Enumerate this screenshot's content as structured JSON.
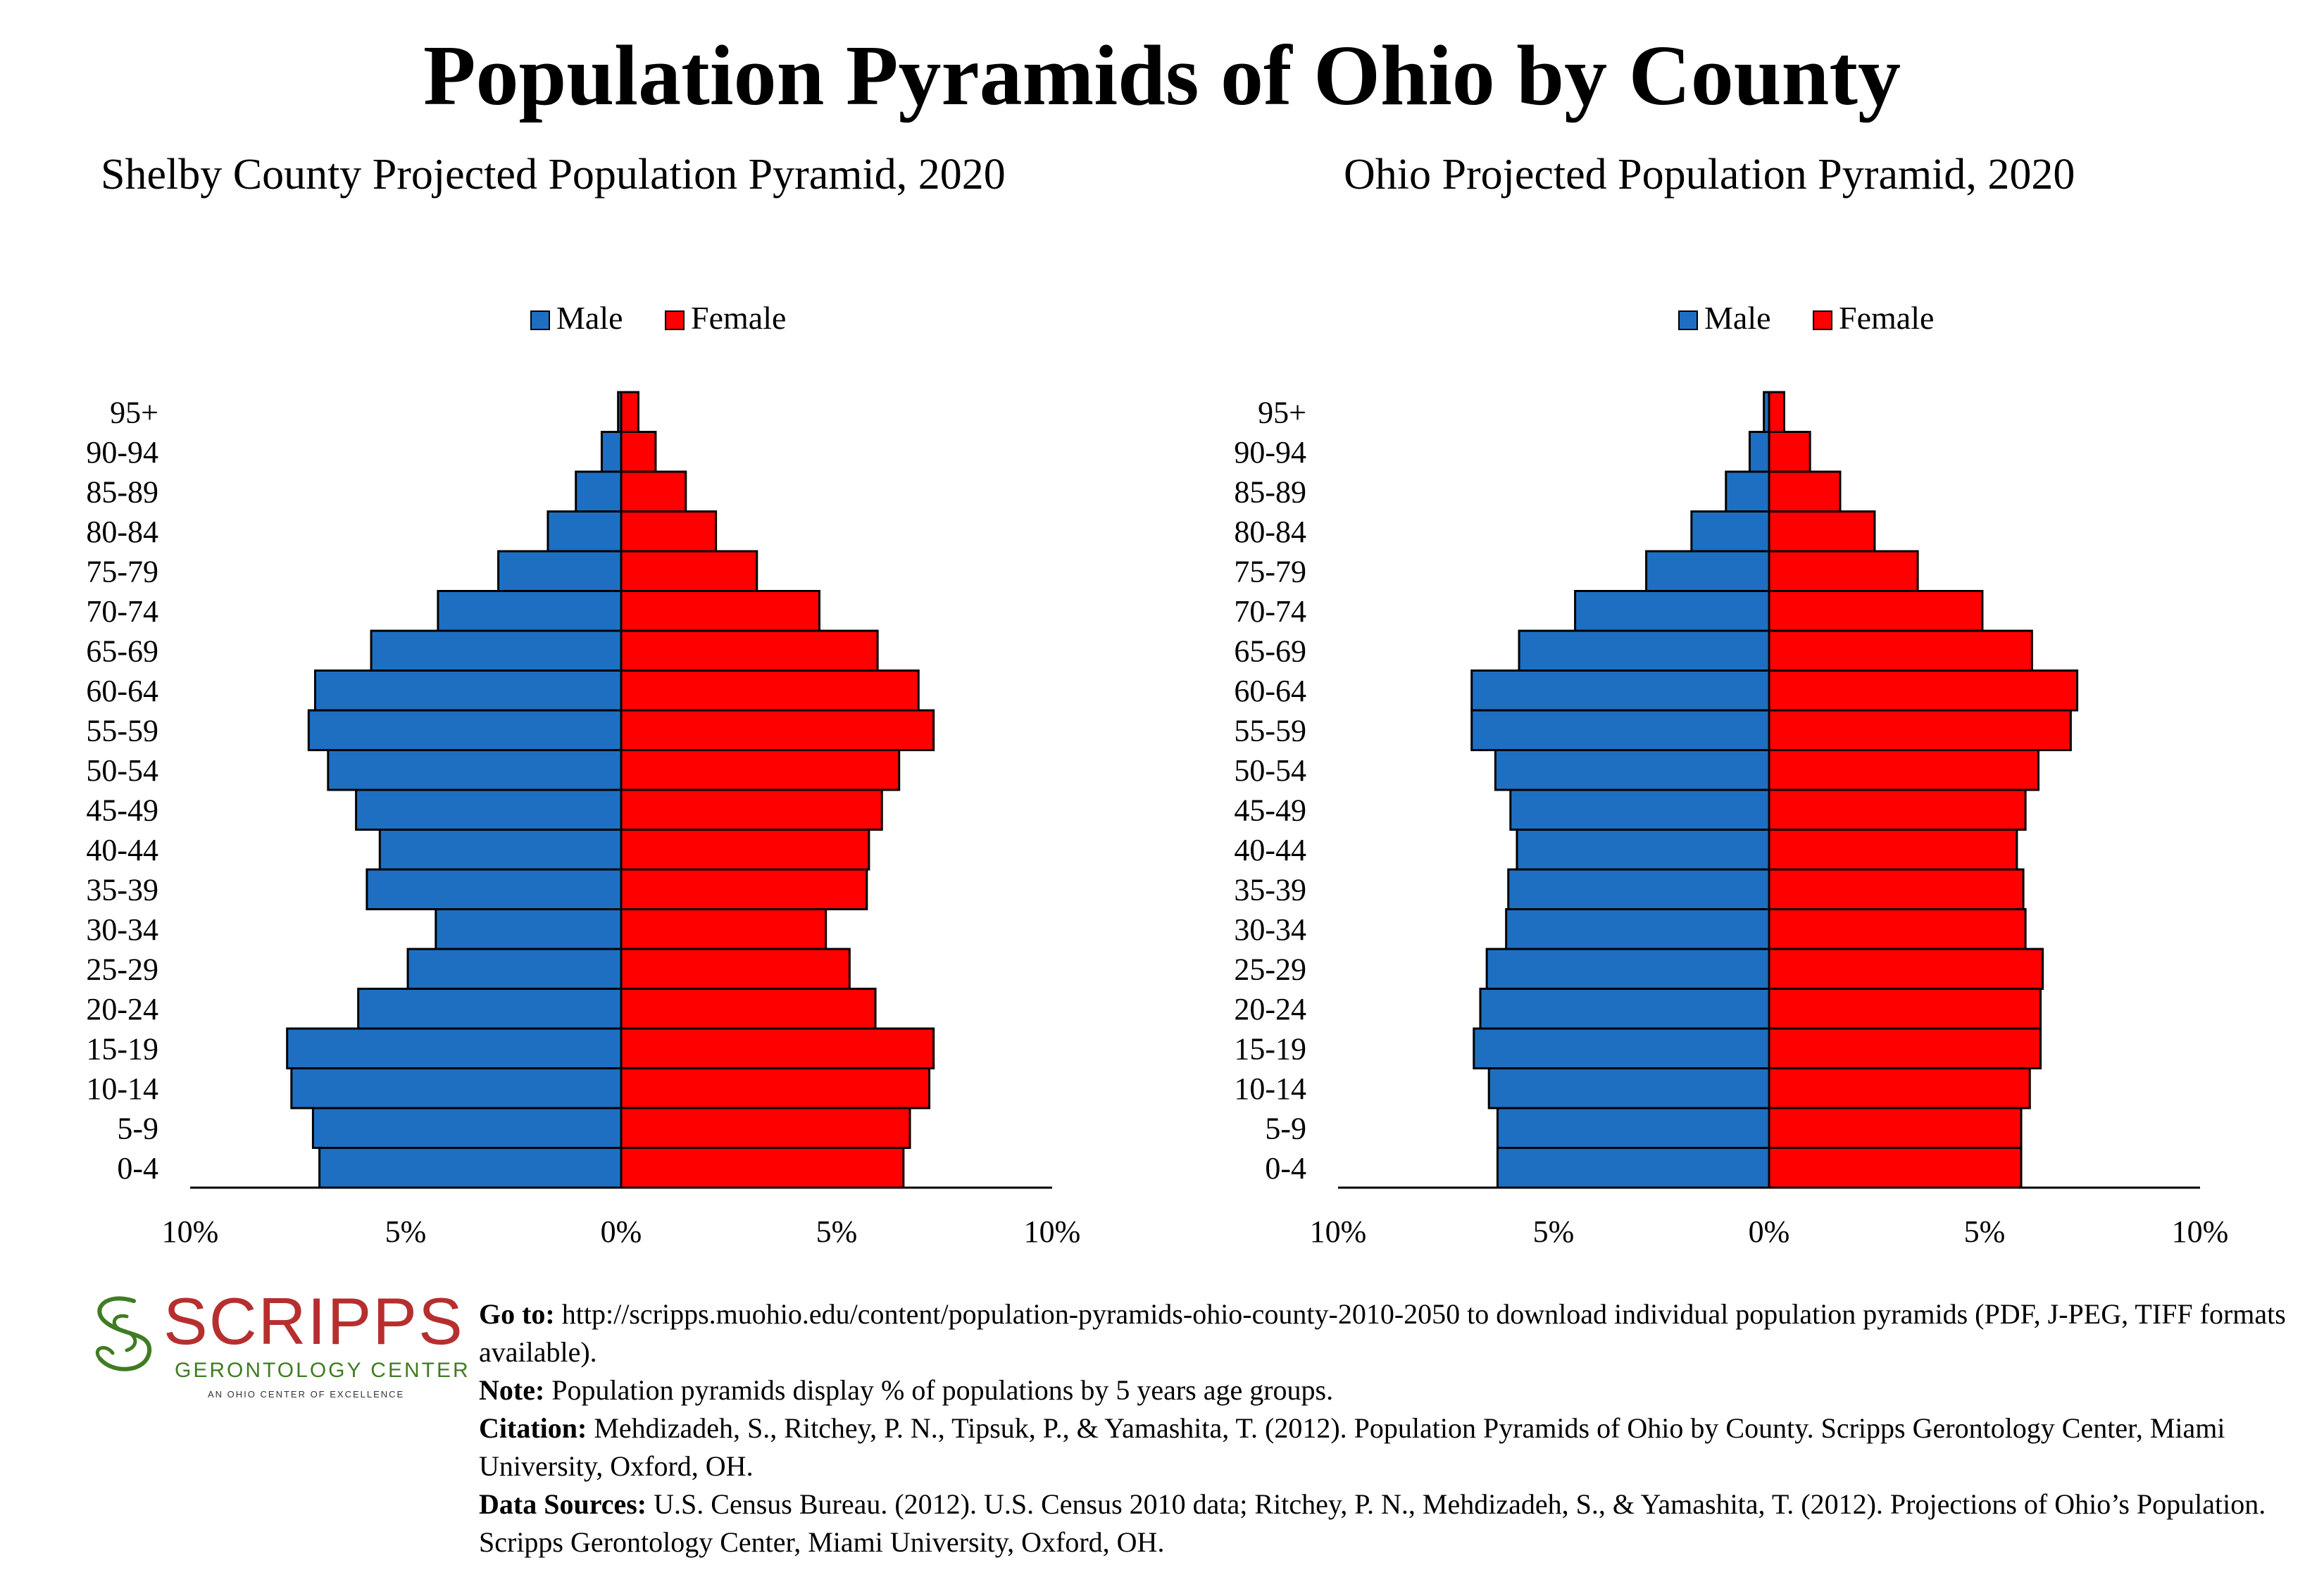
{
  "page": {
    "title": "Population Pyramids of Ohio by County"
  },
  "colors": {
    "male": "#1E6FC2",
    "female": "#FF0000",
    "logo_red": "#B62F2F",
    "logo_green": "#3F7C22"
  },
  "chart_data": [
    {
      "type": "bar",
      "orientation": "horizontal-pyramid",
      "title": "Shelby County Projected Population Pyramid, 2020",
      "categories": [
        "95+",
        "90-94",
        "85-89",
        "80-84",
        "75-79",
        "70-74",
        "65-69",
        "60-64",
        "55-59",
        "50-54",
        "45-49",
        "40-44",
        "35-39",
        "30-34",
        "25-29",
        "20-24",
        "15-19",
        "10-14",
        "5-9",
        "0-4"
      ],
      "series": [
        {
          "name": "Male",
          "values": [
            0.07,
            0.45,
            1.05,
            1.7,
            2.85,
            4.25,
            5.8,
            7.1,
            7.25,
            6.8,
            6.15,
            5.6,
            5.9,
            4.3,
            4.95,
            6.1,
            7.75,
            7.65,
            7.15,
            7.0
          ]
        },
        {
          "name": "Female",
          "values": [
            0.4,
            0.8,
            1.5,
            2.2,
            3.15,
            4.6,
            5.95,
            6.9,
            7.25,
            6.45,
            6.05,
            5.75,
            5.7,
            4.75,
            5.3,
            5.9,
            7.25,
            7.15,
            6.7,
            6.55
          ]
        }
      ],
      "xlim": [
        -10,
        10
      ],
      "xticks": [
        "10%",
        "5%",
        "0%",
        "5%",
        "10%"
      ],
      "legend": "top-center"
    },
    {
      "type": "bar",
      "orientation": "horizontal-pyramid",
      "title": "Ohio Projected Population Pyramid, 2020",
      "categories": [
        "95+",
        "90-94",
        "85-89",
        "80-84",
        "75-79",
        "70-74",
        "65-69",
        "60-64",
        "55-59",
        "50-54",
        "45-49",
        "40-44",
        "35-39",
        "30-34",
        "25-29",
        "20-24",
        "15-19",
        "10-14",
        "5-9",
        "0-4"
      ],
      "series": [
        {
          "name": "Male",
          "values": [
            0.12,
            0.45,
            1.0,
            1.8,
            2.85,
            4.5,
            5.8,
            6.9,
            6.9,
            6.35,
            6.0,
            5.85,
            6.05,
            6.1,
            6.55,
            6.7,
            6.85,
            6.5,
            6.3,
            6.3
          ]
        },
        {
          "name": "Female",
          "values": [
            0.35,
            0.95,
            1.65,
            2.45,
            3.45,
            4.95,
            6.1,
            7.15,
            7.0,
            6.25,
            5.95,
            5.75,
            5.9,
            5.95,
            6.35,
            6.3,
            6.3,
            6.05,
            5.85,
            5.85
          ]
        }
      ],
      "xlim": [
        -10,
        10
      ],
      "xticks": [
        "10%",
        "5%",
        "0%",
        "5%",
        "10%"
      ],
      "legend": "top-center"
    }
  ],
  "logo": {
    "wordmark": "SCRIPPS",
    "subtitle": "GERONTOLOGY CENTER",
    "tagline": "AN OHIO CENTER OF EXCELLENCE"
  },
  "notes": {
    "goto_label": "Go to:",
    "goto_text": " http://scripps.muohio.edu/content/population-pyramids-ohio-county-2010-2050 to download individual population pyramids (PDF, J-PEG, TIFF formats available).",
    "note_label": "Note:",
    "note_text": " Population pyramids display % of populations by 5 years age groups.",
    "citation_label": "Citation:",
    "citation_text": " Mehdizadeh, S., Ritchey, P. N., Tipsuk, P., & Yamashita, T. (2012). Population Pyramids of Ohio by County. Scripps Gerontology Center, Miami University, Oxford, OH.",
    "sources_label": "Data Sources:",
    "sources_text": " U.S. Census Bureau. (2012). U.S. Census 2010 data; Ritchey, P. N., Mehdizadeh, S., & Yamashita, T. (2012). Projections of Ohio’s Population. Scripps Gerontology Center, Miami University, Oxford, OH."
  }
}
